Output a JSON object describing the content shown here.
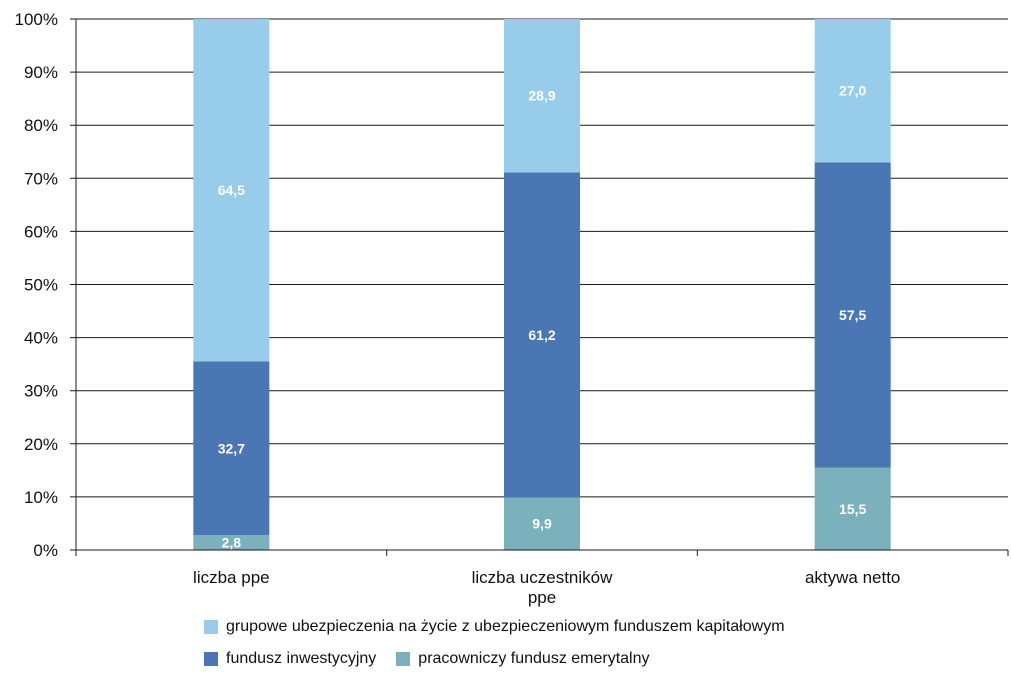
{
  "chart_data": {
    "type": "bar",
    "stacked": true,
    "percent": true,
    "categories": [
      "liczba ppe",
      "liczba uczestników ppe",
      "aktywa netto"
    ],
    "category_lines": [
      [
        "liczba ppe"
      ],
      [
        "liczba uczestników",
        "ppe"
      ],
      [
        "aktywa netto"
      ]
    ],
    "series": [
      {
        "name": "pracowniczy fundusz emerytalny",
        "values": [
          2.8,
          9.9,
          15.5
        ],
        "labels": [
          "2,8",
          "9,9",
          "15,5"
        ],
        "color": "#7ab1bd"
      },
      {
        "name": "fundusz inwestycyjny",
        "values": [
          32.7,
          61.2,
          57.5
        ],
        "labels": [
          "32,7",
          "61,2",
          "57,5"
        ],
        "color": "#4a77b4"
      },
      {
        "name": "grupowe ubezpieczenia na życie z ubezpieczeniowym funduszem kapitałowym",
        "values": [
          64.5,
          28.9,
          27.0
        ],
        "labels": [
          "64,5",
          "28,9",
          "27,0"
        ],
        "color": "#97cdeb"
      }
    ],
    "y_ticks": [
      "0%",
      "10%",
      "20%",
      "30%",
      "40%",
      "50%",
      "60%",
      "70%",
      "80%",
      "90%",
      "100%"
    ],
    "ylim": [
      0,
      100
    ],
    "grid": true,
    "legend_position": "bottom"
  },
  "legend": {
    "item_1": "grupowe ubezpieczenia na życie z ubezpieczeniowym funduszem kapitałowym",
    "item_2": "fundusz inwestycyjny",
    "item_3": "pracowniczy fundusz emerytalny"
  }
}
